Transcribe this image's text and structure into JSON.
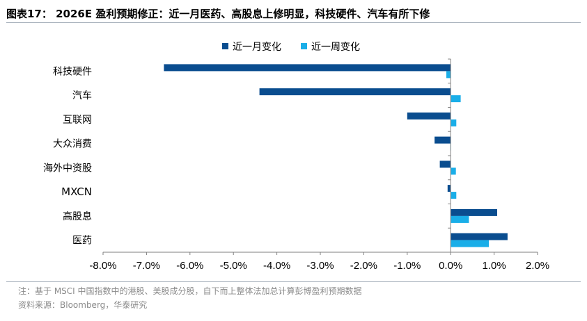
{
  "title": "图表17： 2026E 盈利预期修正：近一月医药、高股息上修明显，科技硬件、汽车有所下修",
  "note": "注：基于 MSCI 中国指数中的港股、美股成分股，自下而上整体法加总计算彭博盈利预期数据",
  "source": "资料来源：Bloomberg，华泰研究",
  "colors": {
    "series1": "#0a4d8f",
    "series2": "#1aaee8",
    "axis": "#7f7f7f"
  },
  "chart_data": {
    "type": "bar",
    "orientation": "horizontal",
    "categories": [
      "科技硬件",
      "汽车",
      "互联网",
      "大众消费",
      "海外中资股",
      "MXCN",
      "高股息",
      "医药"
    ],
    "series": [
      {
        "name": "近一月变化",
        "values": [
          -6.6,
          -4.4,
          -1.0,
          -0.37,
          -0.25,
          -0.07,
          1.07,
          1.31
        ]
      },
      {
        "name": "近一周变化",
        "values": [
          -0.1,
          0.23,
          0.13,
          0.0,
          0.12,
          0.13,
          0.42,
          0.88
        ]
      }
    ],
    "xlim": [
      -8.0,
      2.0
    ],
    "xticks": [
      -8.0,
      -7.0,
      -6.0,
      -5.0,
      -4.0,
      -3.0,
      -2.0,
      -1.0,
      0.0,
      1.0,
      2.0
    ],
    "xtick_labels": [
      "-8.0%",
      "-7.0%",
      "-6.0%",
      "-5.0%",
      "-4.0%",
      "-3.0%",
      "-2.0%",
      "-1.0%",
      "0.0%",
      "1.0%",
      "2.0%"
    ],
    "legend_position": "top-center",
    "grid": false
  }
}
